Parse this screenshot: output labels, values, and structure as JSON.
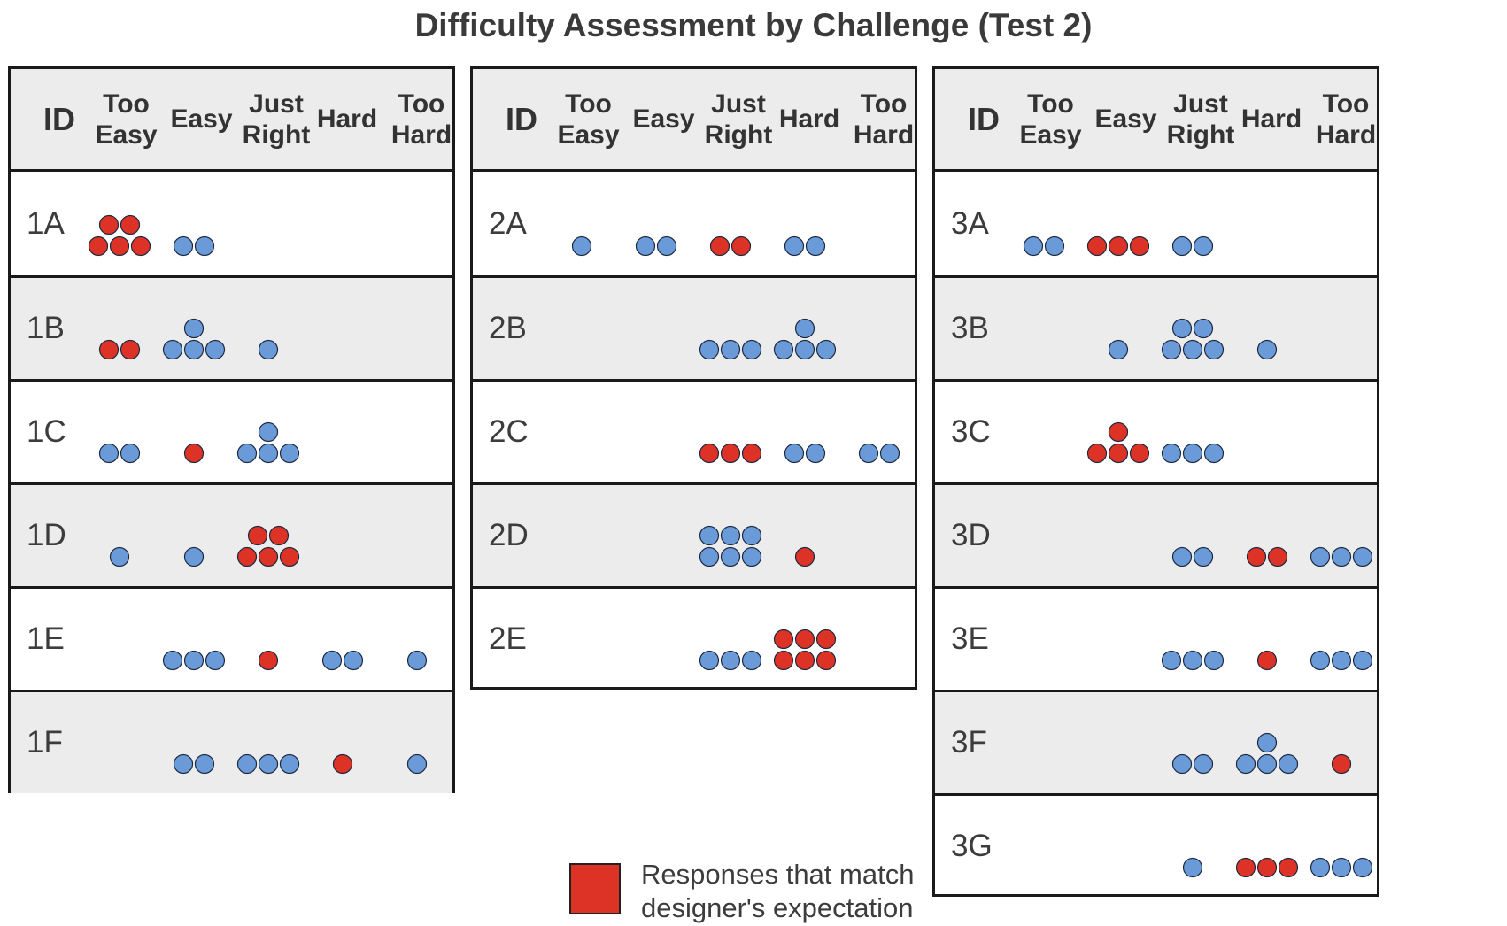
{
  "chart_data": {
    "type": "dot-matrix",
    "title": "Difficulty Assessment by Challenge (Test 2)",
    "columns": [
      "ID",
      "Too\nEasy",
      "Easy",
      "Just\nRight",
      "Hard",
      "Too\nHard"
    ],
    "levels": [
      "Too Easy",
      "Easy",
      "Just Right",
      "Hard",
      "Too Hard"
    ],
    "colors": {
      "match": "#dd3226",
      "other": "#6a9bd8",
      "outline": "#1e2a40"
    },
    "legend": {
      "label": "Responses that match\ndesigner's expectation",
      "color": "#dd3226",
      "placement": "bottom-center"
    },
    "tables": [
      {
        "rows": [
          {
            "id": "1A",
            "counts": [
              5,
              2,
              0,
              0,
              0
            ],
            "match": [
              true,
              false,
              false,
              false,
              false
            ]
          },
          {
            "id": "1B",
            "counts": [
              2,
              4,
              1,
              0,
              0
            ],
            "match": [
              true,
              false,
              false,
              false,
              false
            ]
          },
          {
            "id": "1C",
            "counts": [
              2,
              1,
              4,
              0,
              0
            ],
            "match": [
              false,
              true,
              false,
              false,
              false
            ]
          },
          {
            "id": "1D",
            "counts": [
              1,
              1,
              5,
              0,
              0
            ],
            "match": [
              false,
              false,
              true,
              false,
              false
            ]
          },
          {
            "id": "1E",
            "counts": [
              0,
              3,
              1,
              2,
              1
            ],
            "match": [
              false,
              false,
              true,
              false,
              false
            ]
          },
          {
            "id": "1F",
            "counts": [
              0,
              2,
              3,
              1,
              1
            ],
            "match": [
              false,
              false,
              false,
              true,
              false
            ]
          }
        ]
      },
      {
        "rows": [
          {
            "id": "2A",
            "counts": [
              1,
              2,
              2,
              2,
              0
            ],
            "match": [
              false,
              false,
              true,
              false,
              false
            ]
          },
          {
            "id": "2B",
            "counts": [
              0,
              0,
              3,
              4,
              0
            ],
            "match": [
              false,
              false,
              false,
              false,
              false
            ]
          },
          {
            "id": "2C",
            "counts": [
              0,
              0,
              3,
              2,
              2
            ],
            "match": [
              false,
              false,
              true,
              false,
              false
            ]
          },
          {
            "id": "2D",
            "counts": [
              0,
              0,
              6,
              1,
              0
            ],
            "match": [
              false,
              false,
              false,
              true,
              false
            ]
          },
          {
            "id": "2E",
            "counts": [
              0,
              0,
              3,
              6,
              0
            ],
            "match": [
              false,
              false,
              false,
              true,
              false
            ]
          }
        ]
      },
      {
        "rows": [
          {
            "id": "3A",
            "counts": [
              2,
              3,
              2,
              0,
              0
            ],
            "match": [
              false,
              true,
              false,
              false,
              false
            ]
          },
          {
            "id": "3B",
            "counts": [
              0,
              1,
              5,
              1,
              0
            ],
            "match": [
              false,
              false,
              false,
              false,
              false
            ]
          },
          {
            "id": "3C",
            "counts": [
              0,
              4,
              3,
              0,
              0
            ],
            "match": [
              false,
              true,
              false,
              false,
              false
            ]
          },
          {
            "id": "3D",
            "counts": [
              0,
              0,
              2,
              2,
              3
            ],
            "match": [
              false,
              false,
              false,
              true,
              false
            ]
          },
          {
            "id": "3E",
            "counts": [
              0,
              0,
              3,
              1,
              3
            ],
            "match": [
              false,
              false,
              false,
              true,
              false
            ]
          },
          {
            "id": "3F",
            "counts": [
              0,
              0,
              2,
              4,
              1
            ],
            "match": [
              false,
              false,
              false,
              false,
              true
            ]
          },
          {
            "id": "3G",
            "counts": [
              0,
              0,
              1,
              3,
              3
            ],
            "match": [
              false,
              false,
              false,
              true,
              false
            ]
          }
        ]
      }
    ]
  }
}
